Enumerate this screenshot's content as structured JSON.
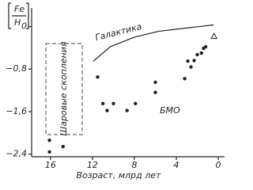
{
  "chart_data": {
    "type": "scatter",
    "y_label": {
      "numerator": "Fe",
      "denominator": "H"
    },
    "x_label": "Возраст, млрд лет",
    "xlim": [
      17.8,
      -0.6
    ],
    "ylim": [
      -2.45,
      0.35
    ],
    "xticks": [
      16,
      12,
      8,
      4,
      0
    ],
    "yticks": [
      0,
      {
        "value": -0.8,
        "label": "−0,8"
      },
      {
        "value": -1.6,
        "label": "−1,6"
      },
      {
        "value": -2.4,
        "label": "−2,4"
      }
    ],
    "annotations": [
      "Галактика",
      "Шаровые скопления",
      "БМО"
    ],
    "curve": {
      "x": [
        11.9,
        10.3,
        8.0,
        5.7,
        2.7,
        0.45
      ],
      "values": [
        -0.65,
        -0.38,
        -0.2,
        -0.09,
        -0.02,
        0.03
      ]
    },
    "series": [
      {
        "marker": "circle",
        "color": "#222",
        "x": [
          16.1,
          14.8,
          16.1,
          11.5,
          11.0,
          10.6,
          10.0,
          8.7,
          7.9,
          6.0,
          6.0,
          3.2,
          2.9,
          2.6,
          2.3,
          2.0,
          1.6,
          1.4,
          1.2
        ],
        "values": [
          -2.14,
          -2.26,
          -2.36,
          -0.95,
          -1.45,
          -1.58,
          -1.45,
          -1.58,
          -1.45,
          -1.24,
          -1.05,
          -0.98,
          -0.65,
          -0.76,
          -0.64,
          -0.53,
          -0.5,
          -0.41,
          -0.38
        ]
      },
      {
        "marker": "triangle",
        "color": "#222",
        "x": [
          0.4
        ],
        "values": [
          -0.18
        ]
      }
    ]
  }
}
